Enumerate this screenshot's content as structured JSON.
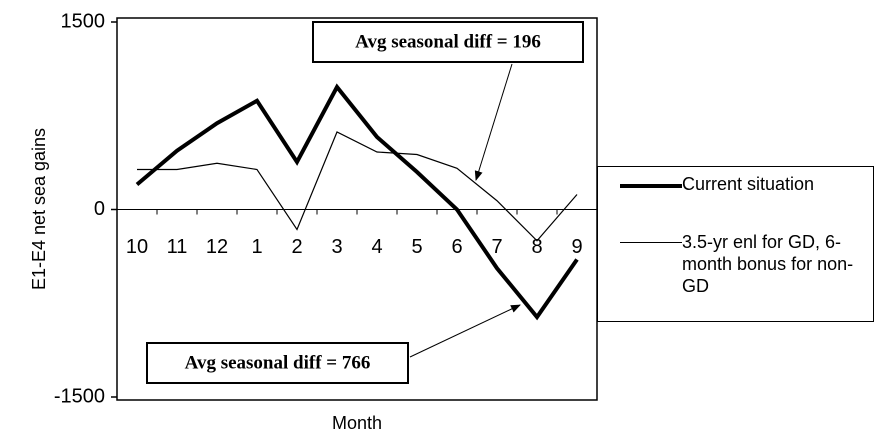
{
  "chart_data": {
    "type": "line",
    "y_label": "E1-E4 net sea gains",
    "x_label": "Month",
    "categories": [
      "10",
      "11",
      "12",
      "1",
      "2",
      "3",
      "4",
      "5",
      "6",
      "7",
      "8",
      "9"
    ],
    "series": [
      {
        "name": "Current situation",
        "color": "#000000",
        "line_width": 4,
        "values": [
          200,
          470,
          690,
          870,
          380,
          980,
          580,
          300,
          0,
          -470,
          -860,
          -400
        ]
      },
      {
        "name": "3.5-yr enl for GD, 6-month bonus for non-GD",
        "color": "#000000",
        "line_width": 1.2,
        "values": [
          320,
          320,
          370,
          320,
          -160,
          620,
          460,
          440,
          330,
          70,
          -250,
          120
        ]
      }
    ],
    "ylim": [
      -1500,
      1500
    ],
    "yticks": [
      -1500,
      0,
      1500
    ],
    "annotations": [
      "Avg seasonal diff = 196",
      "Avg seasonal diff = 766"
    ]
  }
}
